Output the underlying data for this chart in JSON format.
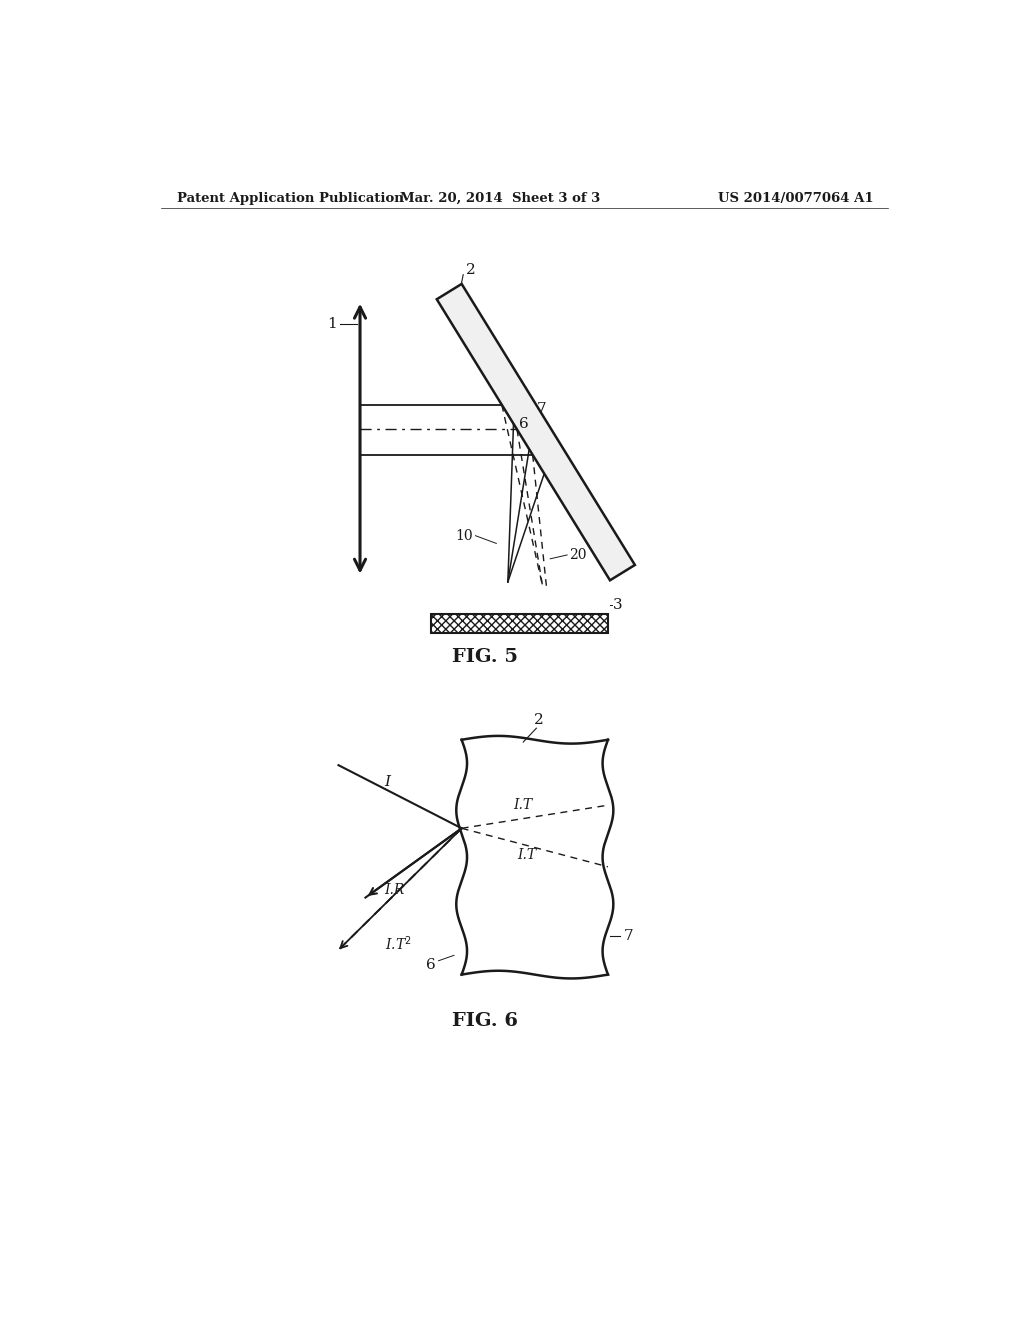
{
  "bg_color": "#ffffff",
  "header_left": "Patent Application Publication",
  "header_center": "Mar. 20, 2014  Sheet 3 of 3",
  "header_right": "US 2014/0077064 A1",
  "fig5_label": "FIG. 5",
  "fig6_label": "FIG. 6",
  "lc": "#1a1a1a"
}
